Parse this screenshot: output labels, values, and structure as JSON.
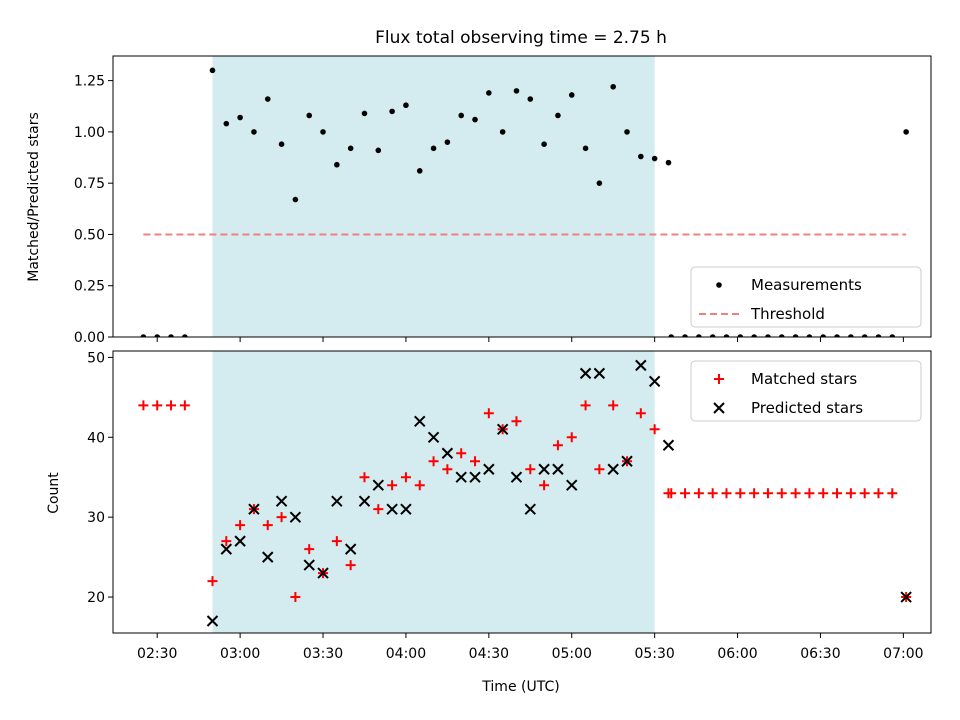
{
  "figure": {
    "title": "Flux total observing time = 2.75 h",
    "xlabel": "Time (UTC)",
    "xlim": [
      "02:14",
      "07:10"
    ]
  },
  "chart_data": [
    {
      "type": "scatter",
      "ylabel": "Matched/Predicted stars",
      "ylim": [
        0,
        1.37
      ],
      "yticks": [
        "0.00",
        "0.25",
        "0.50",
        "0.75",
        "1.00",
        "1.25"
      ],
      "shaded_interval": {
        "start": "02:50",
        "end": "05:30",
        "color": "#d4ebf0"
      },
      "legend": {
        "position": "bottom-right",
        "entries": [
          "Measurements",
          "Threshold"
        ]
      },
      "series": [
        {
          "name": "Measurements",
          "color": "#000000",
          "marker": "dot",
          "points": [
            [
              "02:25",
              0
            ],
            [
              "02:30",
              0
            ],
            [
              "02:35",
              0
            ],
            [
              "02:40",
              0
            ],
            [
              "02:50",
              1.3
            ],
            [
              "02:55",
              1.04
            ],
            [
              "03:00",
              1.07
            ],
            [
              "03:05",
              1.0
            ],
            [
              "03:10",
              1.16
            ],
            [
              "03:15",
              0.94
            ],
            [
              "03:20",
              0.67
            ],
            [
              "03:25",
              1.08
            ],
            [
              "03:30",
              1.0
            ],
            [
              "03:35",
              0.84
            ],
            [
              "03:40",
              0.92
            ],
            [
              "03:45",
              1.09
            ],
            [
              "03:50",
              0.91
            ],
            [
              "03:55",
              1.1
            ],
            [
              "04:00",
              1.13
            ],
            [
              "04:05",
              0.81
            ],
            [
              "04:10",
              0.92
            ],
            [
              "04:15",
              0.95
            ],
            [
              "04:20",
              1.08
            ],
            [
              "04:25",
              1.06
            ],
            [
              "04:30",
              1.19
            ],
            [
              "04:35",
              1.0
            ],
            [
              "04:40",
              1.2
            ],
            [
              "04:45",
              1.16
            ],
            [
              "04:50",
              0.94
            ],
            [
              "04:55",
              1.08
            ],
            [
              "05:00",
              1.18
            ],
            [
              "05:05",
              0.92
            ],
            [
              "05:10",
              0.75
            ],
            [
              "05:15",
              1.22
            ],
            [
              "05:20",
              1.0
            ],
            [
              "05:25",
              0.88
            ],
            [
              "05:30",
              0.87
            ],
            [
              "05:35",
              0.85
            ],
            [
              "05:36",
              0
            ],
            [
              "05:41",
              0
            ],
            [
              "05:46",
              0
            ],
            [
              "05:51",
              0
            ],
            [
              "05:56",
              0
            ],
            [
              "06:01",
              0
            ],
            [
              "06:06",
              0
            ],
            [
              "06:11",
              0
            ],
            [
              "06:16",
              0
            ],
            [
              "06:21",
              0
            ],
            [
              "06:26",
              0
            ],
            [
              "06:31",
              0
            ],
            [
              "06:36",
              0
            ],
            [
              "06:41",
              0
            ],
            [
              "06:46",
              0
            ],
            [
              "06:51",
              0
            ],
            [
              "06:56",
              0
            ],
            [
              "07:01",
              1.0
            ]
          ]
        },
        {
          "name": "Threshold",
          "color": "#f08080",
          "style": "dashed",
          "points": [
            [
              "02:25",
              0.5
            ],
            [
              "07:01",
              0.5
            ]
          ]
        }
      ]
    },
    {
      "type": "scatter",
      "ylabel": "Count",
      "ylim": [
        15.5,
        50.8
      ],
      "yticks": [
        "20",
        "30",
        "40",
        "50"
      ],
      "shaded_interval": {
        "start": "02:50",
        "end": "05:30",
        "color": "#d4ebf0"
      },
      "xticks": [
        "02:30",
        "03:00",
        "03:30",
        "04:00",
        "04:30",
        "05:00",
        "05:30",
        "06:00",
        "06:30",
        "07:00"
      ],
      "legend": {
        "position": "top-right",
        "entries": [
          "Matched stars",
          "Predicted stars"
        ]
      },
      "series": [
        {
          "name": "Matched stars",
          "color": "#ff0000",
          "marker": "plus",
          "points": [
            [
              "02:25",
              44
            ],
            [
              "02:30",
              44
            ],
            [
              "02:35",
              44
            ],
            [
              "02:40",
              44
            ],
            [
              "02:50",
              22
            ],
            [
              "02:55",
              27
            ],
            [
              "03:00",
              29
            ],
            [
              "03:05",
              31
            ],
            [
              "03:10",
              29
            ],
            [
              "03:15",
              30
            ],
            [
              "03:20",
              20
            ],
            [
              "03:25",
              26
            ],
            [
              "03:30",
              23
            ],
            [
              "03:35",
              27
            ],
            [
              "03:40",
              24
            ],
            [
              "03:45",
              35
            ],
            [
              "03:50",
              31
            ],
            [
              "03:55",
              34
            ],
            [
              "04:00",
              35
            ],
            [
              "04:05",
              34
            ],
            [
              "04:10",
              37
            ],
            [
              "04:15",
              36
            ],
            [
              "04:20",
              38
            ],
            [
              "04:25",
              37
            ],
            [
              "04:30",
              43
            ],
            [
              "04:35",
              41
            ],
            [
              "04:40",
              42
            ],
            [
              "04:45",
              36
            ],
            [
              "04:50",
              34
            ],
            [
              "04:55",
              39
            ],
            [
              "05:00",
              40
            ],
            [
              "05:05",
              44
            ],
            [
              "05:10",
              36
            ],
            [
              "05:15",
              44
            ],
            [
              "05:20",
              37
            ],
            [
              "05:25",
              43
            ],
            [
              "05:30",
              41
            ],
            [
              "05:35",
              33
            ],
            [
              "05:36",
              33
            ],
            [
              "05:41",
              33
            ],
            [
              "05:46",
              33
            ],
            [
              "05:51",
              33
            ],
            [
              "05:56",
              33
            ],
            [
              "06:01",
              33
            ],
            [
              "06:06",
              33
            ],
            [
              "06:11",
              33
            ],
            [
              "06:16",
              33
            ],
            [
              "06:21",
              33
            ],
            [
              "06:26",
              33
            ],
            [
              "06:31",
              33
            ],
            [
              "06:36",
              33
            ],
            [
              "06:41",
              33
            ],
            [
              "06:46",
              33
            ],
            [
              "06:51",
              33
            ],
            [
              "06:56",
              33
            ],
            [
              "07:01",
              20
            ]
          ]
        },
        {
          "name": "Predicted stars",
          "color": "#000000",
          "marker": "x",
          "points": [
            [
              "02:50",
              17
            ],
            [
              "02:55",
              26
            ],
            [
              "03:00",
              27
            ],
            [
              "03:05",
              31
            ],
            [
              "03:10",
              25
            ],
            [
              "03:15",
              32
            ],
            [
              "03:20",
              30
            ],
            [
              "03:25",
              24
            ],
            [
              "03:30",
              23
            ],
            [
              "03:35",
              32
            ],
            [
              "03:40",
              26
            ],
            [
              "03:45",
              32
            ],
            [
              "03:50",
              34
            ],
            [
              "03:55",
              31
            ],
            [
              "04:00",
              31
            ],
            [
              "04:05",
              42
            ],
            [
              "04:10",
              40
            ],
            [
              "04:15",
              38
            ],
            [
              "04:20",
              35
            ],
            [
              "04:25",
              35
            ],
            [
              "04:30",
              36
            ],
            [
              "04:35",
              41
            ],
            [
              "04:40",
              35
            ],
            [
              "04:45",
              31
            ],
            [
              "04:50",
              36
            ],
            [
              "04:55",
              36
            ],
            [
              "05:00",
              34
            ],
            [
              "05:05",
              48
            ],
            [
              "05:10",
              48
            ],
            [
              "05:15",
              36
            ],
            [
              "05:20",
              37
            ],
            [
              "05:25",
              49
            ],
            [
              "05:30",
              47
            ],
            [
              "05:35",
              39
            ],
            [
              "07:01",
              20
            ]
          ]
        }
      ]
    }
  ]
}
